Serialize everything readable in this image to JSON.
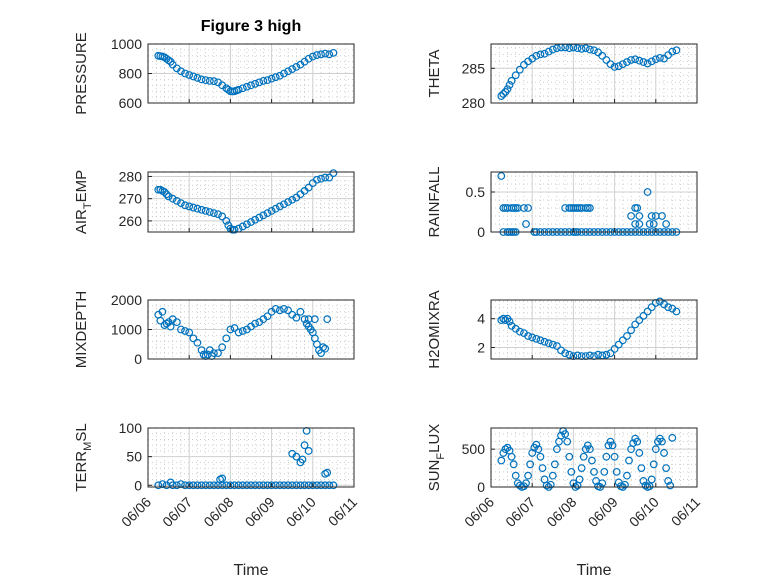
{
  "chart_data": [
    {
      "id": "pressure",
      "type": "scatter",
      "title": "Figure 3 high",
      "ylabel": "PRESSURE",
      "ylim": [
        600,
        1000
      ],
      "yticks": [
        600,
        800,
        1000
      ],
      "xlim": [
        "06/06",
        "06/11"
      ],
      "grid": true,
      "color": "#0072BD",
      "x": [
        0.25,
        0.3,
        0.35,
        0.4,
        0.45,
        0.5,
        0.55,
        0.6,
        0.7,
        0.8,
        0.9,
        1.0,
        1.1,
        1.2,
        1.3,
        1.4,
        1.5,
        1.6,
        1.7,
        1.8,
        1.9,
        1.95,
        2.0,
        2.05,
        2.1,
        2.15,
        2.2,
        2.3,
        2.4,
        2.5,
        2.6,
        2.7,
        2.8,
        2.9,
        3.0,
        3.1,
        3.2,
        3.3,
        3.4,
        3.5,
        3.6,
        3.7,
        3.8,
        3.9,
        4.0,
        4.1,
        4.2,
        4.3,
        4.4,
        4.5
      ],
      "y": [
        920,
        918,
        915,
        910,
        900,
        890,
        880,
        860,
        835,
        815,
        800,
        790,
        780,
        770,
        760,
        755,
        750,
        748,
        740,
        720,
        700,
        690,
        680,
        678,
        680,
        685,
        690,
        700,
        710,
        720,
        730,
        740,
        750,
        755,
        765,
        775,
        785,
        800,
        815,
        830,
        845,
        860,
        880,
        900,
        915,
        925,
        930,
        935,
        930,
        940
      ]
    },
    {
      "id": "theta",
      "type": "scatter",
      "ylabel": "THETA",
      "ylim": [
        280,
        288.5
      ],
      "yticks": [
        280,
        285
      ],
      "xlim": [
        "06/06",
        "06/11"
      ],
      "grid": true,
      "color": "#0072BD",
      "x": [
        0.25,
        0.3,
        0.35,
        0.4,
        0.45,
        0.5,
        0.6,
        0.7,
        0.8,
        0.9,
        1.0,
        1.1,
        1.2,
        1.3,
        1.4,
        1.5,
        1.6,
        1.7,
        1.8,
        1.9,
        2.0,
        2.1,
        2.2,
        2.3,
        2.4,
        2.5,
        2.6,
        2.7,
        2.8,
        2.9,
        3.0,
        3.1,
        3.2,
        3.3,
        3.4,
        3.5,
        3.6,
        3.7,
        3.8,
        3.9,
        4.0,
        4.1,
        4.2,
        4.3,
        4.4,
        4.5
      ],
      "y": [
        281,
        281.3,
        281.6,
        282,
        282.6,
        283.2,
        284,
        284.8,
        285.5,
        286,
        286.4,
        286.8,
        287,
        287.1,
        287.4,
        287.7,
        287.9,
        288,
        288,
        287.9,
        288,
        287.9,
        287.8,
        287.9,
        287.7,
        287.6,
        287.3,
        286.8,
        286.2,
        285.6,
        285.2,
        285.3,
        285.6,
        285.9,
        286.2,
        286.3,
        286.1,
        285.9,
        285.7,
        286,
        286.3,
        286.5,
        286.4,
        286.9,
        287.4,
        287.6
      ]
    },
    {
      "id": "air_temp",
      "type": "scatter",
      "ylabel": "AIR_TEMP",
      "ylabel_sub": "T",
      "ylabel_pre": "AIR",
      "ylabel_post": "EMP",
      "ylim": [
        255,
        282
      ],
      "yticks": [
        260,
        270,
        280
      ],
      "xlim": [
        "06/06",
        "06/11"
      ],
      "grid": true,
      "color": "#0072BD",
      "x": [
        0.25,
        0.3,
        0.35,
        0.4,
        0.45,
        0.5,
        0.6,
        0.7,
        0.8,
        0.9,
        1.0,
        1.1,
        1.2,
        1.3,
        1.4,
        1.5,
        1.6,
        1.7,
        1.8,
        1.9,
        1.95,
        2.0,
        2.05,
        2.1,
        2.2,
        2.3,
        2.4,
        2.5,
        2.6,
        2.7,
        2.8,
        2.9,
        3.0,
        3.1,
        3.2,
        3.3,
        3.4,
        3.5,
        3.6,
        3.7,
        3.8,
        3.9,
        4.0,
        4.1,
        4.2,
        4.3,
        4.4,
        4.5
      ],
      "y": [
        274,
        274,
        273.5,
        273,
        272,
        271,
        270,
        269,
        268,
        267,
        266.5,
        266,
        265.5,
        265,
        264.5,
        264,
        263.5,
        263,
        262,
        260,
        258,
        256.5,
        256,
        256,
        256.5,
        257.5,
        258.5,
        259.5,
        260.5,
        261.5,
        262.5,
        263.5,
        264.5,
        265.5,
        266.5,
        267.5,
        268.5,
        269.5,
        270.5,
        272,
        273.5,
        275,
        277,
        278.5,
        279,
        279.5,
        279.5,
        281.5
      ]
    },
    {
      "id": "rainfall",
      "type": "scatter",
      "ylabel": "RAINFALL",
      "ylim": [
        0,
        0.75
      ],
      "yticks": [
        0,
        0.5
      ],
      "xlim": [
        "06/06",
        "06/11"
      ],
      "grid": true,
      "color": "#0072BD",
      "x": [
        0.25,
        0.3,
        0.35,
        0.4,
        0.5,
        0.55,
        0.6,
        0.65,
        0.8,
        0.9,
        0.3,
        0.4,
        0.5,
        0.55,
        0.6,
        1.05,
        1.1,
        1.2,
        1.3,
        1.4,
        1.5,
        1.6,
        1.7,
        1.8,
        1.9,
        2.0,
        2.05,
        2.1,
        2.2,
        2.3,
        2.4,
        2.5,
        2.6,
        2.7,
        2.8,
        2.9,
        3.0,
        3.1,
        3.2,
        3.3,
        3.4,
        3.5,
        3.6,
        3.7,
        3.8,
        3.9,
        4.0,
        4.1,
        4.2,
        4.3,
        4.4,
        4.5,
        1.8,
        1.9,
        1.95,
        2.0,
        2.05,
        2.1,
        2.15,
        2.2,
        2.3,
        2.35,
        2.4,
        0.85,
        3.4,
        3.5,
        3.55,
        3.6,
        3.8,
        3.9,
        4.0,
        4.15,
        3.85,
        3.95,
        0.45,
        3.5,
        3.6,
        4.25
      ],
      "y": [
        0.7,
        0.3,
        0.3,
        0.3,
        0.3,
        0.3,
        0.3,
        0.3,
        0.3,
        0.3,
        0,
        0,
        0,
        0,
        0,
        0,
        0,
        0,
        0,
        0,
        0,
        0,
        0,
        0,
        0,
        0,
        0,
        0,
        0,
        0,
        0,
        0,
        0,
        0,
        0,
        0,
        0,
        0,
        0,
        0,
        0,
        0,
        0,
        0,
        0,
        0,
        0,
        0,
        0,
        0,
        0,
        0,
        0.3,
        0.3,
        0.3,
        0.3,
        0.3,
        0.3,
        0.3,
        0.3,
        0.3,
        0.3,
        0.3,
        0.1,
        0.2,
        0.3,
        0.3,
        0.2,
        0.5,
        0.2,
        0.2,
        0.2,
        0.1,
        0.1,
        0,
        0.1,
        0.1,
        0.1
      ]
    },
    {
      "id": "mixdepth",
      "type": "scatter",
      "ylabel": "MIXDEPTH",
      "ylim": [
        0,
        2000
      ],
      "yticks": [
        0,
        1000,
        2000
      ],
      "xlim": [
        "06/06",
        "06/11"
      ],
      "grid": true,
      "color": "#0072BD",
      "x": [
        0.25,
        0.3,
        0.35,
        0.4,
        0.45,
        0.5,
        0.55,
        0.6,
        0.7,
        0.8,
        0.9,
        1.0,
        1.1,
        1.2,
        1.3,
        1.35,
        1.4,
        1.45,
        1.5,
        1.55,
        1.6,
        1.7,
        1.8,
        1.9,
        2.0,
        2.1,
        2.2,
        2.3,
        2.4,
        2.5,
        2.6,
        2.7,
        2.8,
        2.9,
        3.0,
        3.1,
        3.2,
        3.3,
        3.4,
        3.5,
        3.6,
        3.7,
        3.8,
        3.85,
        3.9,
        3.95,
        4.0,
        4.05,
        4.1,
        4.15,
        4.2,
        4.25,
        4.3,
        3.9,
        4.05,
        4.35
      ],
      "y": [
        1500,
        1300,
        1600,
        1150,
        1200,
        1250,
        1100,
        1350,
        1250,
        1000,
        950,
        900,
        700,
        550,
        300,
        150,
        100,
        150,
        300,
        100,
        200,
        200,
        400,
        700,
        1000,
        1050,
        900,
        950,
        1000,
        1100,
        1200,
        1250,
        1350,
        1450,
        1600,
        1700,
        1650,
        1700,
        1650,
        1500,
        1400,
        1600,
        1350,
        1200,
        1100,
        1000,
        900,
        700,
        500,
        300,
        200,
        400,
        350,
        1350,
        1350,
        1350
      ]
    },
    {
      "id": "h2omixra",
      "type": "scatter",
      "ylabel": "H2OMIXRA",
      "ylim": [
        1.2,
        5.3
      ],
      "yticks": [
        2,
        4
      ],
      "xlim": [
        "06/06",
        "06/11"
      ],
      "grid": true,
      "color": "#0072BD",
      "x": [
        0.25,
        0.3,
        0.35,
        0.4,
        0.45,
        0.5,
        0.6,
        0.7,
        0.8,
        0.9,
        1.0,
        1.1,
        1.2,
        1.3,
        1.4,
        1.5,
        1.6,
        1.7,
        1.8,
        1.9,
        2.0,
        2.1,
        2.2,
        2.3,
        2.4,
        2.5,
        2.6,
        2.7,
        2.8,
        2.9,
        3.0,
        3.1,
        3.2,
        3.3,
        3.4,
        3.5,
        3.6,
        3.7,
        3.8,
        3.9,
        4.0,
        4.1,
        4.2,
        4.3,
        4.4,
        4.5
      ],
      "y": [
        3.9,
        4.0,
        3.9,
        4.0,
        3.8,
        3.5,
        3.3,
        3.1,
        3.0,
        2.8,
        2.7,
        2.6,
        2.5,
        2.4,
        2.3,
        2.2,
        2.1,
        1.8,
        1.6,
        1.5,
        1.4,
        1.45,
        1.4,
        1.4,
        1.45,
        1.4,
        1.5,
        1.45,
        1.5,
        1.6,
        1.9,
        2.2,
        2.5,
        2.8,
        3.2,
        3.6,
        3.9,
        4.2,
        4.5,
        4.8,
        5.1,
        5.2,
        5.0,
        4.8,
        4.7,
        4.5
      ]
    },
    {
      "id": "terr_msl",
      "type": "scatter",
      "ylabel": "TERR_MSL",
      "ylabel_pre": "TERR",
      "ylabel_sub": "M",
      "ylabel_post": "SL",
      "ylim": [
        -3,
        100
      ],
      "yticks": [
        0,
        50,
        100
      ],
      "xlim": [
        "06/06",
        "06/11"
      ],
      "grid": true,
      "color": "#0072BD",
      "x": [
        0.25,
        0.35,
        0.45,
        0.55,
        0.6,
        0.7,
        0.8,
        0.9,
        1.0,
        1.1,
        1.2,
        1.3,
        1.4,
        1.5,
        1.6,
        1.7,
        1.8,
        1.9,
        2.0,
        2.1,
        2.2,
        2.3,
        2.4,
        2.5,
        2.6,
        2.7,
        2.8,
        2.9,
        3.0,
        3.1,
        3.2,
        3.3,
        3.4,
        3.5,
        3.6,
        3.7,
        3.8,
        3.9,
        4.0,
        4.1,
        4.2,
        4.3,
        4.4,
        4.5,
        1.75,
        1.8,
        3.5,
        3.6,
        3.7,
        3.75,
        3.8,
        3.85,
        3.9,
        4.3,
        4.35
      ],
      "y": [
        0,
        2,
        0,
        5,
        0,
        0,
        2,
        0,
        0,
        0,
        0,
        0,
        0,
        0,
        0,
        0,
        0,
        0,
        0,
        0,
        0,
        0,
        0,
        0,
        0,
        0,
        0,
        0,
        0,
        0,
        0,
        0,
        0,
        0,
        0,
        0,
        0,
        0,
        0,
        0,
        0,
        0,
        0,
        0,
        10,
        12,
        55,
        50,
        40,
        45,
        70,
        95,
        60,
        20,
        22
      ]
    },
    {
      "id": "sun_flux",
      "type": "scatter",
      "ylabel": "SUN_FLUX",
      "ylabel_pre": "SUN",
      "ylabel_sub": "F",
      "ylabel_post": "LUX",
      "ylim": [
        0,
        780
      ],
      "yticks": [
        0,
        500
      ],
      "xlim": [
        "06/06",
        "06/11"
      ],
      "grid": true,
      "color": "#0072BD",
      "x": [
        0.25,
        0.3,
        0.35,
        0.4,
        0.45,
        0.5,
        0.55,
        0.6,
        0.65,
        0.7,
        0.75,
        0.8,
        0.85,
        0.9,
        0.95,
        1.0,
        1.05,
        1.1,
        1.15,
        1.2,
        1.25,
        1.3,
        1.35,
        1.4,
        1.45,
        1.5,
        1.55,
        1.6,
        1.65,
        1.7,
        1.75,
        1.8,
        1.85,
        1.9,
        1.95,
        2.0,
        2.05,
        2.1,
        2.15,
        2.2,
        2.25,
        2.3,
        2.35,
        2.4,
        2.45,
        2.5,
        2.55,
        2.6,
        2.65,
        2.7,
        2.75,
        2.8,
        2.85,
        2.9,
        2.95,
        3.0,
        3.05,
        3.1,
        3.15,
        3.2,
        3.25,
        3.3,
        3.35,
        3.4,
        3.45,
        3.5,
        3.55,
        3.6,
        3.65,
        3.7,
        3.75,
        3.8,
        3.85,
        3.9,
        3.95,
        4.0,
        4.05,
        4.1,
        4.15,
        4.2,
        4.25,
        4.3,
        4.35,
        4.4
      ],
      "y": [
        350,
        450,
        500,
        520,
        480,
        400,
        300,
        150,
        50,
        20,
        0,
        10,
        50,
        150,
        300,
        450,
        520,
        560,
        500,
        400,
        250,
        100,
        20,
        0,
        30,
        150,
        300,
        500,
        600,
        680,
        740,
        700,
        600,
        400,
        200,
        50,
        0,
        20,
        100,
        250,
        400,
        500,
        550,
        500,
        350,
        200,
        80,
        10,
        0,
        50,
        200,
        400,
        550,
        600,
        550,
        400,
        200,
        60,
        10,
        0,
        30,
        150,
        350,
        500,
        580,
        640,
        600,
        450,
        250,
        80,
        20,
        0,
        10,
        100,
        300,
        500,
        600,
        640,
        600,
        450,
        250,
        80,
        20,
        650
      ]
    }
  ],
  "xticklabels": [
    "06/06",
    "06/07",
    "06/08",
    "06/09",
    "06/10",
    "06/11"
  ],
  "xlabel": "Time"
}
